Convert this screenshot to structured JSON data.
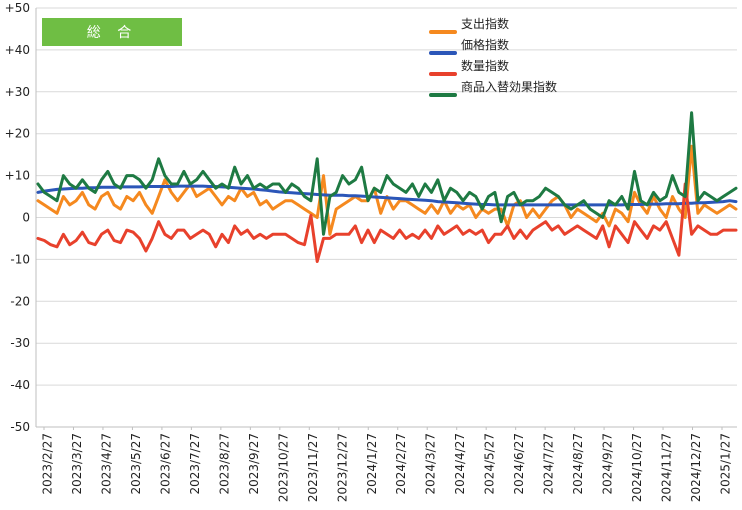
{
  "chart_data": {
    "type": "line",
    "badge": "総 合",
    "ylim": [
      -50,
      50
    ],
    "y_ticks": [
      "+50",
      "+40",
      "+30",
      "+20",
      "+10",
      "0",
      "-10",
      "-20",
      "-30",
      "-40",
      "-50"
    ],
    "x_tick_labels": [
      "2023/2/27",
      "2023/3/27",
      "2023/4/27",
      "2023/5/27",
      "2023/6/27",
      "2023/7/27",
      "2023/8/27",
      "2023/9/27",
      "2023/10/27",
      "2023/11/27",
      "2023/12/27",
      "2024/1/27",
      "2024/2/27",
      "2024/3/27",
      "2024/4/27",
      "2024/5/27",
      "2024/6/27",
      "2024/7/27",
      "2024/8/27",
      "2024/9/27",
      "2024/10/27",
      "2024/11/27",
      "2024/12/27",
      "2025/1/27"
    ],
    "grid": true,
    "legend_position": "top-right",
    "series": [
      {
        "name": "支出指数",
        "color": "#f5891f",
        "values": [
          4,
          3,
          2,
          1,
          5,
          3,
          4,
          6,
          3,
          2,
          5,
          6,
          3,
          2,
          5,
          4,
          6,
          3,
          1,
          5,
          9,
          6,
          4,
          6,
          8,
          5,
          6,
          7,
          5,
          3,
          5,
          4,
          7,
          5,
          6,
          3,
          4,
          2,
          3,
          4,
          4,
          3,
          2,
          1,
          0,
          10,
          -4,
          2,
          3,
          4,
          5,
          4,
          4,
          7,
          1,
          5,
          2,
          4,
          4,
          3,
          2,
          1,
          3,
          1,
          4,
          1,
          3,
          2,
          3,
          0,
          2,
          1,
          2,
          2,
          -2,
          3,
          4,
          0,
          2,
          0,
          2,
          4,
          5,
          3,
          0,
          2,
          1,
          0,
          -1,
          1,
          -2,
          2,
          1,
          -1,
          6,
          3,
          1,
          5,
          2,
          0,
          5,
          2,
          0,
          17,
          1,
          3,
          2,
          1,
          2,
          3,
          2
        ]
      },
      {
        "name": "価格指数",
        "color": "#2b56b8",
        "values": [
          6.0,
          6.3,
          6.5,
          6.7,
          6.8,
          6.9,
          7.0,
          7.0,
          7.1,
          7.1,
          7.2,
          7.2,
          7.2,
          7.3,
          7.3,
          7.3,
          7.3,
          7.4,
          7.4,
          7.4,
          7.4,
          7.4,
          7.5,
          7.5,
          7.5,
          7.5,
          7.5,
          7.4,
          7.4,
          7.3,
          7.2,
          7.1,
          7.0,
          6.9,
          6.8,
          6.6,
          6.5,
          6.3,
          6.1,
          6.0,
          5.9,
          5.8,
          5.7,
          5.6,
          5.5,
          5.4,
          5.3,
          5.3,
          5.3,
          5.2,
          5.2,
          5.1,
          5.0,
          4.9,
          4.8,
          4.7,
          4.6,
          4.5,
          4.4,
          4.3,
          4.2,
          4.1,
          4.0,
          3.8,
          3.7,
          3.6,
          3.5,
          3.4,
          3.3,
          3.2,
          3.1,
          3.1,
          3.0,
          3.0,
          3.0,
          3.0,
          3.0,
          3.0,
          3.0,
          3.0,
          3.0,
          3.0,
          3.0,
          3.0,
          3.0,
          3.0,
          3.0,
          3.0,
          3.0,
          3.0,
          3.0,
          3.0,
          3.0,
          3.1,
          3.1,
          3.1,
          3.2,
          3.2,
          3.2,
          3.3,
          3.3,
          3.3,
          3.4,
          3.4,
          3.5,
          3.5,
          3.6,
          3.7,
          3.8,
          4.0,
          3.8
        ]
      },
      {
        "name": "数量指数",
        "color": "#e8412c",
        "values": [
          -5,
          -5.5,
          -6.5,
          -7,
          -4,
          -6.5,
          -5.5,
          -3.5,
          -6,
          -6.5,
          -4,
          -3,
          -5.5,
          -6,
          -3,
          -3.5,
          -5,
          -8,
          -5,
          -1,
          -4,
          -5,
          -3,
          -3,
          -5,
          -4,
          -3,
          -4,
          -7,
          -4,
          -6,
          -2,
          -4,
          -3,
          -5,
          -4,
          -5,
          -4,
          -4,
          -4,
          -5,
          -6,
          -6.5,
          0.5,
          -10.5,
          -5,
          -5,
          -4,
          -4,
          -4,
          -2,
          -6,
          -3,
          -6,
          -3,
          -4,
          -5,
          -3,
          -5,
          -4,
          -5,
          -3,
          -5,
          -2,
          -4,
          -3,
          -2,
          -4,
          -3,
          -4,
          -3,
          -6,
          -4,
          -4,
          -2,
          -5,
          -3,
          -5,
          -3,
          -2,
          -1,
          -3,
          -2,
          -4,
          -3,
          -2,
          -3,
          -4,
          -5,
          -2,
          -7,
          -2,
          -4,
          -6,
          -1,
          -3,
          -5,
          -2,
          -3,
          -1,
          -5,
          -9,
          8,
          -4,
          -2,
          -3,
          -4,
          -4,
          -3,
          -3,
          -3
        ]
      },
      {
        "name": "商品入替効果指数",
        "color": "#1e7a43",
        "values": [
          8,
          6,
          5,
          4,
          10,
          8,
          7,
          9,
          7,
          6,
          9,
          11,
          8,
          7,
          10,
          10,
          9,
          7,
          9,
          14,
          10,
          8,
          8,
          11,
          8,
          9,
          11,
          9,
          7,
          8,
          7,
          12,
          8,
          10,
          7,
          8,
          7,
          8,
          8,
          6,
          8,
          7,
          5,
          4,
          14,
          -4,
          5,
          6,
          10,
          8,
          9,
          12,
          4,
          7,
          6,
          10,
          8,
          7,
          6,
          8,
          5,
          8,
          6,
          9,
          4,
          7,
          6,
          4,
          6,
          5,
          2,
          5,
          6,
          -1,
          5,
          6,
          3,
          4,
          4,
          5,
          7,
          6,
          5,
          3,
          2,
          3,
          4,
          2,
          1,
          0,
          4,
          3,
          5,
          2,
          11,
          4,
          3,
          6,
          4,
          5,
          10,
          6,
          5,
          25,
          4,
          6,
          5,
          4,
          5,
          6,
          7
        ]
      }
    ]
  }
}
